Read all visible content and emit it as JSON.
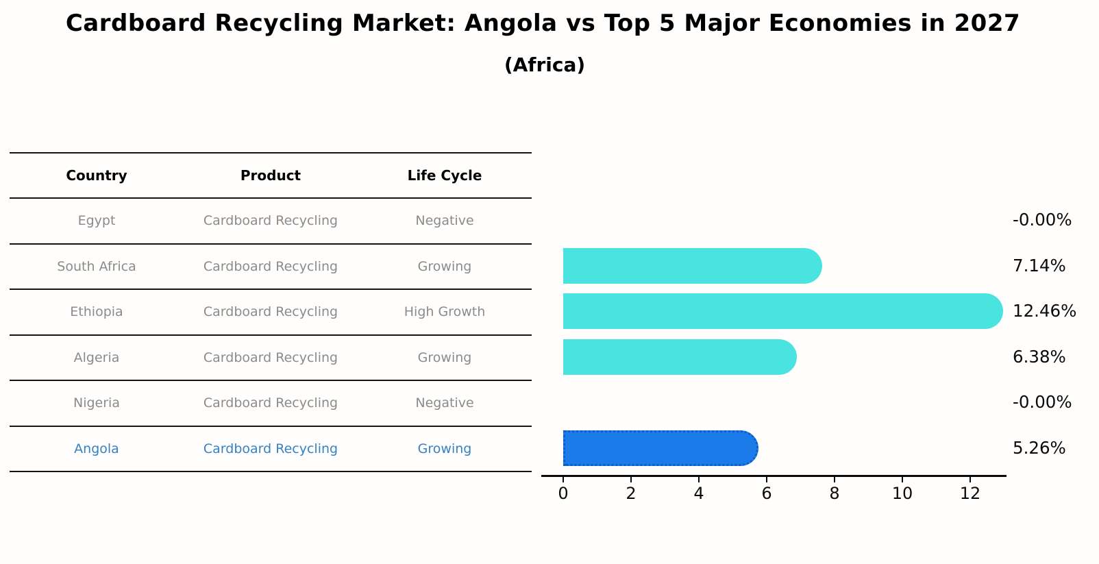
{
  "header": {
    "title": "Cardboard Recycling Market: Angola vs Top 5 Major Economies in 2027",
    "subtitle": "(Africa)"
  },
  "table": {
    "columns": [
      "Country",
      "Product",
      "Life Cycle"
    ],
    "rows": [
      {
        "country": "Egypt",
        "product": "Cardboard Recycling",
        "life_cycle": "Negative",
        "highlight": false
      },
      {
        "country": "South Africa",
        "product": "Cardboard Recycling",
        "life_cycle": "Growing",
        "highlight": false
      },
      {
        "country": "Ethiopia",
        "product": "Cardboard Recycling",
        "life_cycle": "High Growth",
        "highlight": false
      },
      {
        "country": "Algeria",
        "product": "Cardboard Recycling",
        "life_cycle": "Growing",
        "highlight": false
      },
      {
        "country": "Nigeria",
        "product": "Cardboard Recycling",
        "life_cycle": "Negative",
        "highlight": false
      },
      {
        "country": "Angola",
        "product": "Cardboard Recycling",
        "life_cycle": "Growing",
        "highlight": true
      }
    ]
  },
  "chart_data": {
    "type": "bar",
    "orientation": "horizontal",
    "title": "Cardboard Recycling Market: Angola vs Top 5 Major Economies in 2027",
    "subtitle": "(Africa)",
    "categories": [
      "Egypt",
      "South Africa",
      "Ethiopia",
      "Algeria",
      "Nigeria",
      "Angola"
    ],
    "values": [
      -0.0,
      7.14,
      12.46,
      6.38,
      -0.0,
      5.26
    ],
    "value_labels": [
      "-0.00%",
      "7.14%",
      "12.46%",
      "6.38%",
      "-0.00%",
      "5.26%"
    ],
    "xlabel": "",
    "ylabel": "",
    "xlim": [
      -0.65,
      13.1
    ],
    "xticks": [
      0,
      2,
      4,
      6,
      8,
      10,
      12
    ],
    "grid": false,
    "legend": false,
    "highlight_index": 5,
    "bar_color": "#4ae4e0",
    "highlight_color": "#1b7ce9",
    "highlight_border_color": "#0d5dc4",
    "highlight_text_color": "#3482c4"
  }
}
